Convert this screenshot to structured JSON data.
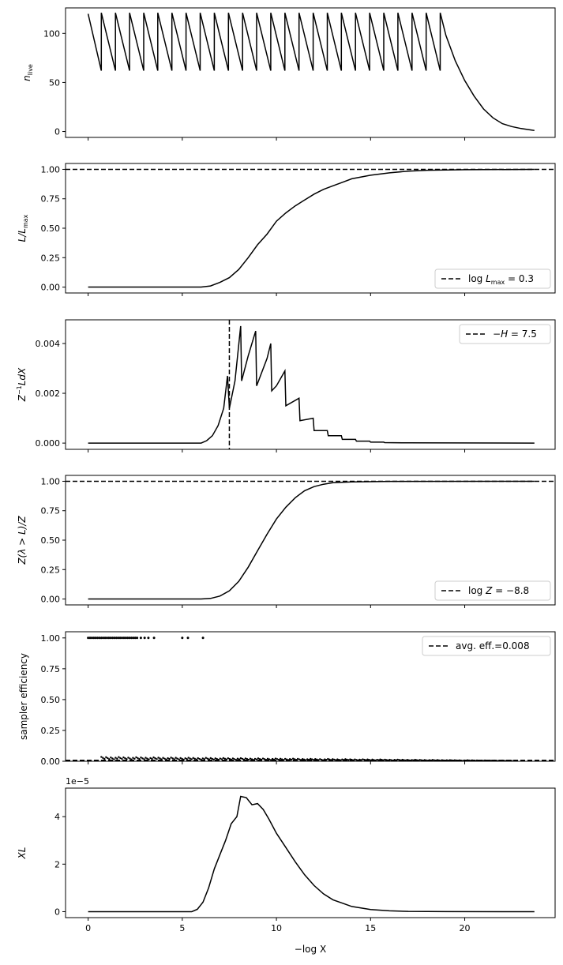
{
  "figure": {
    "xlabel": "−log X",
    "x_ticks": [
      "0",
      "5",
      "10",
      "15",
      "20"
    ]
  },
  "chart_data": [
    {
      "type": "line",
      "ylabel": "n_live",
      "xlim": [
        -1.2,
        24.8
      ],
      "ylim": [
        -6,
        126
      ],
      "yticks": [
        "0",
        "50",
        "100"
      ],
      "series": [
        {
          "name": "",
          "points": [
            [
              0,
              120
            ],
            [
              0.7,
              62
            ],
            [
              0.7,
              121
            ],
            [
              1.45,
              62
            ],
            [
              1.45,
              121
            ],
            [
              2.2,
              62
            ],
            [
              2.2,
              121
            ],
            [
              2.95,
              62
            ],
            [
              2.95,
              121
            ],
            [
              3.7,
              62
            ],
            [
              3.7,
              121
            ],
            [
              4.45,
              62
            ],
            [
              4.45,
              121
            ],
            [
              5.2,
              62
            ],
            [
              5.2,
              121
            ],
            [
              5.95,
              62
            ],
            [
              5.95,
              121
            ],
            [
              6.7,
              62
            ],
            [
              6.7,
              121
            ],
            [
              7.45,
              62
            ],
            [
              7.45,
              121
            ],
            [
              8.2,
              62
            ],
            [
              8.2,
              121
            ],
            [
              8.95,
              62
            ],
            [
              8.95,
              121
            ],
            [
              9.7,
              62
            ],
            [
              9.7,
              121
            ],
            [
              10.45,
              62
            ],
            [
              10.45,
              121
            ],
            [
              11.2,
              62
            ],
            [
              11.2,
              121
            ],
            [
              11.95,
              62
            ],
            [
              11.95,
              121
            ],
            [
              12.7,
              62
            ],
            [
              12.7,
              121
            ],
            [
              13.45,
              62
            ],
            [
              13.45,
              121
            ],
            [
              14.2,
              62
            ],
            [
              14.2,
              121
            ],
            [
              14.95,
              62
            ],
            [
              14.95,
              121
            ],
            [
              15.7,
              62
            ],
            [
              15.7,
              121
            ],
            [
              16.45,
              62
            ],
            [
              16.45,
              121
            ],
            [
              17.2,
              62
            ],
            [
              17.2,
              121
            ],
            [
              17.95,
              62
            ],
            [
              17.95,
              121
            ],
            [
              18.7,
              62
            ],
            [
              18.7,
              121
            ],
            [
              19.0,
              98
            ],
            [
              19.5,
              72
            ],
            [
              20.0,
              52
            ],
            [
              20.5,
              36
            ],
            [
              21.0,
              23
            ],
            [
              21.5,
              14
            ],
            [
              22.0,
              8
            ],
            [
              22.5,
              5
            ],
            [
              23.0,
              3
            ],
            [
              23.7,
              1
            ]
          ]
        }
      ]
    },
    {
      "type": "line",
      "ylabel": "L/L_max",
      "xlim": [
        -1.2,
        24.8
      ],
      "ylim": [
        -0.05,
        1.05
      ],
      "yticks": [
        "0.00",
        "0.25",
        "0.50",
        "0.75",
        "1.00"
      ],
      "hline": 1.0,
      "legend": "log L_max = 0.3",
      "legend_position": "lower-right",
      "series": [
        {
          "name": "",
          "points": [
            [
              0,
              0
            ],
            [
              6,
              0
            ],
            [
              6.5,
              0.01
            ],
            [
              7,
              0.04
            ],
            [
              7.5,
              0.08
            ],
            [
              8,
              0.15
            ],
            [
              8.5,
              0.25
            ],
            [
              9,
              0.36
            ],
            [
              9.5,
              0.45
            ],
            [
              10,
              0.56
            ],
            [
              10.5,
              0.63
            ],
            [
              11,
              0.69
            ],
            [
              11.5,
              0.74
            ],
            [
              12,
              0.79
            ],
            [
              12.5,
              0.83
            ],
            [
              13,
              0.86
            ],
            [
              13.5,
              0.89
            ],
            [
              14,
              0.92
            ],
            [
              15,
              0.95
            ],
            [
              16,
              0.97
            ],
            [
              17,
              0.985
            ],
            [
              18,
              0.992
            ],
            [
              20,
              0.997
            ],
            [
              23.7,
              1.0
            ]
          ]
        }
      ]
    },
    {
      "type": "line",
      "ylabel": "Z^-1 L dX",
      "xlim": [
        -1.2,
        24.8
      ],
      "ylim": [
        -0.00025,
        0.00495
      ],
      "yticks": [
        "0.000",
        "0.002",
        "0.004"
      ],
      "vline": 7.5,
      "legend": "−H = 7.5",
      "legend_position": "upper-right",
      "series": [
        {
          "name": "",
          "points": [
            [
              0,
              0
            ],
            [
              6,
              0
            ],
            [
              6.3,
              0.0001
            ],
            [
              6.6,
              0.0003
            ],
            [
              6.9,
              0.0007
            ],
            [
              7.2,
              0.0014
            ],
            [
              7.4,
              0.0027
            ],
            [
              7.5,
              0.0014
            ],
            [
              7.8,
              0.0025
            ],
            [
              8.1,
              0.0047
            ],
            [
              8.15,
              0.0025
            ],
            [
              8.5,
              0.0035
            ],
            [
              8.9,
              0.0045
            ],
            [
              8.95,
              0.0023
            ],
            [
              9.5,
              0.0034
            ],
            [
              9.7,
              0.004
            ],
            [
              9.75,
              0.0021
            ],
            [
              10,
              0.0023
            ],
            [
              10.45,
              0.0029
            ],
            [
              10.5,
              0.0015
            ],
            [
              11.2,
              0.0018
            ],
            [
              11.25,
              0.0009
            ],
            [
              11.95,
              0.001
            ],
            [
              12,
              0.0005
            ],
            [
              12.7,
              0.0005
            ],
            [
              12.75,
              0.0003
            ],
            [
              13.45,
              0.0003
            ],
            [
              13.5,
              0.00015
            ],
            [
              14.2,
              0.00015
            ],
            [
              14.25,
              8e-05
            ],
            [
              14.95,
              8e-05
            ],
            [
              15,
              4e-05
            ],
            [
              15.7,
              4e-05
            ],
            [
              15.75,
              2e-05
            ],
            [
              17,
              1e-05
            ],
            [
              23.7,
              0
            ]
          ]
        }
      ]
    },
    {
      "type": "line",
      "ylabel": "Z(λ > L)/Z",
      "xlim": [
        -1.2,
        24.8
      ],
      "ylim": [
        -0.05,
        1.05
      ],
      "yticks": [
        "0.00",
        "0.25",
        "0.50",
        "0.75",
        "1.00"
      ],
      "hline": 1.0,
      "legend": "log Z = −8.8",
      "legend_position": "lower-right",
      "series": [
        {
          "name": "",
          "points": [
            [
              0,
              0
            ],
            [
              6,
              0
            ],
            [
              6.5,
              0.005
            ],
            [
              7,
              0.025
            ],
            [
              7.5,
              0.07
            ],
            [
              8,
              0.15
            ],
            [
              8.5,
              0.27
            ],
            [
              9,
              0.41
            ],
            [
              9.5,
              0.55
            ],
            [
              10,
              0.68
            ],
            [
              10.5,
              0.78
            ],
            [
              11,
              0.86
            ],
            [
              11.5,
              0.92
            ],
            [
              12,
              0.955
            ],
            [
              12.5,
              0.975
            ],
            [
              13,
              0.988
            ],
            [
              14,
              0.995
            ],
            [
              16,
              0.999
            ],
            [
              23.7,
              1.0
            ]
          ]
        }
      ]
    },
    {
      "type": "scatter",
      "ylabel": "sampler efficiency",
      "xlim": [
        -1.2,
        24.8
      ],
      "ylim": [
        0,
        1.05
      ],
      "yticks": [
        "0.00",
        "0.25",
        "0.50",
        "0.75",
        "1.00"
      ],
      "hline": 0.008,
      "legend": "avg. eff.=0.008",
      "legend_position": "upper-right",
      "high_points": {
        "x": [
          0,
          0.1,
          0.2,
          0.3,
          0.4,
          0.5,
          0.6,
          0.7,
          0.8,
          0.9,
          1.0,
          1.1,
          1.2,
          1.3,
          1.4,
          1.5,
          1.6,
          1.7,
          1.8,
          1.9,
          2.0,
          2.1,
          2.2,
          2.3,
          2.4,
          2.5,
          2.6,
          2.8,
          3.0,
          3.2,
          3.5,
          5.0,
          5.3,
          6.1
        ],
        "y": 1.0
      },
      "low_band": {
        "x_start": 0.7,
        "x_end": 22.5,
        "y_start": 0.035,
        "y_end": 0.005
      }
    },
    {
      "type": "line",
      "ylabel": "XL",
      "offset_label": "1e−5",
      "xlim": [
        -1.2,
        24.8
      ],
      "ylim": [
        -0.25,
        5.2
      ],
      "yticks": [
        "0",
        "2",
        "4"
      ],
      "series": [
        {
          "name": "",
          "points": [
            [
              0,
              0
            ],
            [
              5.5,
              0
            ],
            [
              5.8,
              0.1
            ],
            [
              6.1,
              0.4
            ],
            [
              6.4,
              1.0
            ],
            [
              6.7,
              1.8
            ],
            [
              7,
              2.4
            ],
            [
              7.3,
              3.0
            ],
            [
              7.6,
              3.7
            ],
            [
              7.9,
              4.0
            ],
            [
              8.1,
              4.85
            ],
            [
              8.4,
              4.8
            ],
            [
              8.7,
              4.5
            ],
            [
              9.0,
              4.55
            ],
            [
              9.3,
              4.3
            ],
            [
              9.6,
              3.9
            ],
            [
              10,
              3.3
            ],
            [
              10.5,
              2.7
            ],
            [
              11,
              2.1
            ],
            [
              11.5,
              1.55
            ],
            [
              12,
              1.1
            ],
            [
              12.5,
              0.75
            ],
            [
              13,
              0.5
            ],
            [
              14,
              0.22
            ],
            [
              15,
              0.09
            ],
            [
              16,
              0.035
            ],
            [
              17,
              0.013
            ],
            [
              19,
              0.002
            ],
            [
              23.7,
              0
            ]
          ]
        }
      ]
    }
  ]
}
